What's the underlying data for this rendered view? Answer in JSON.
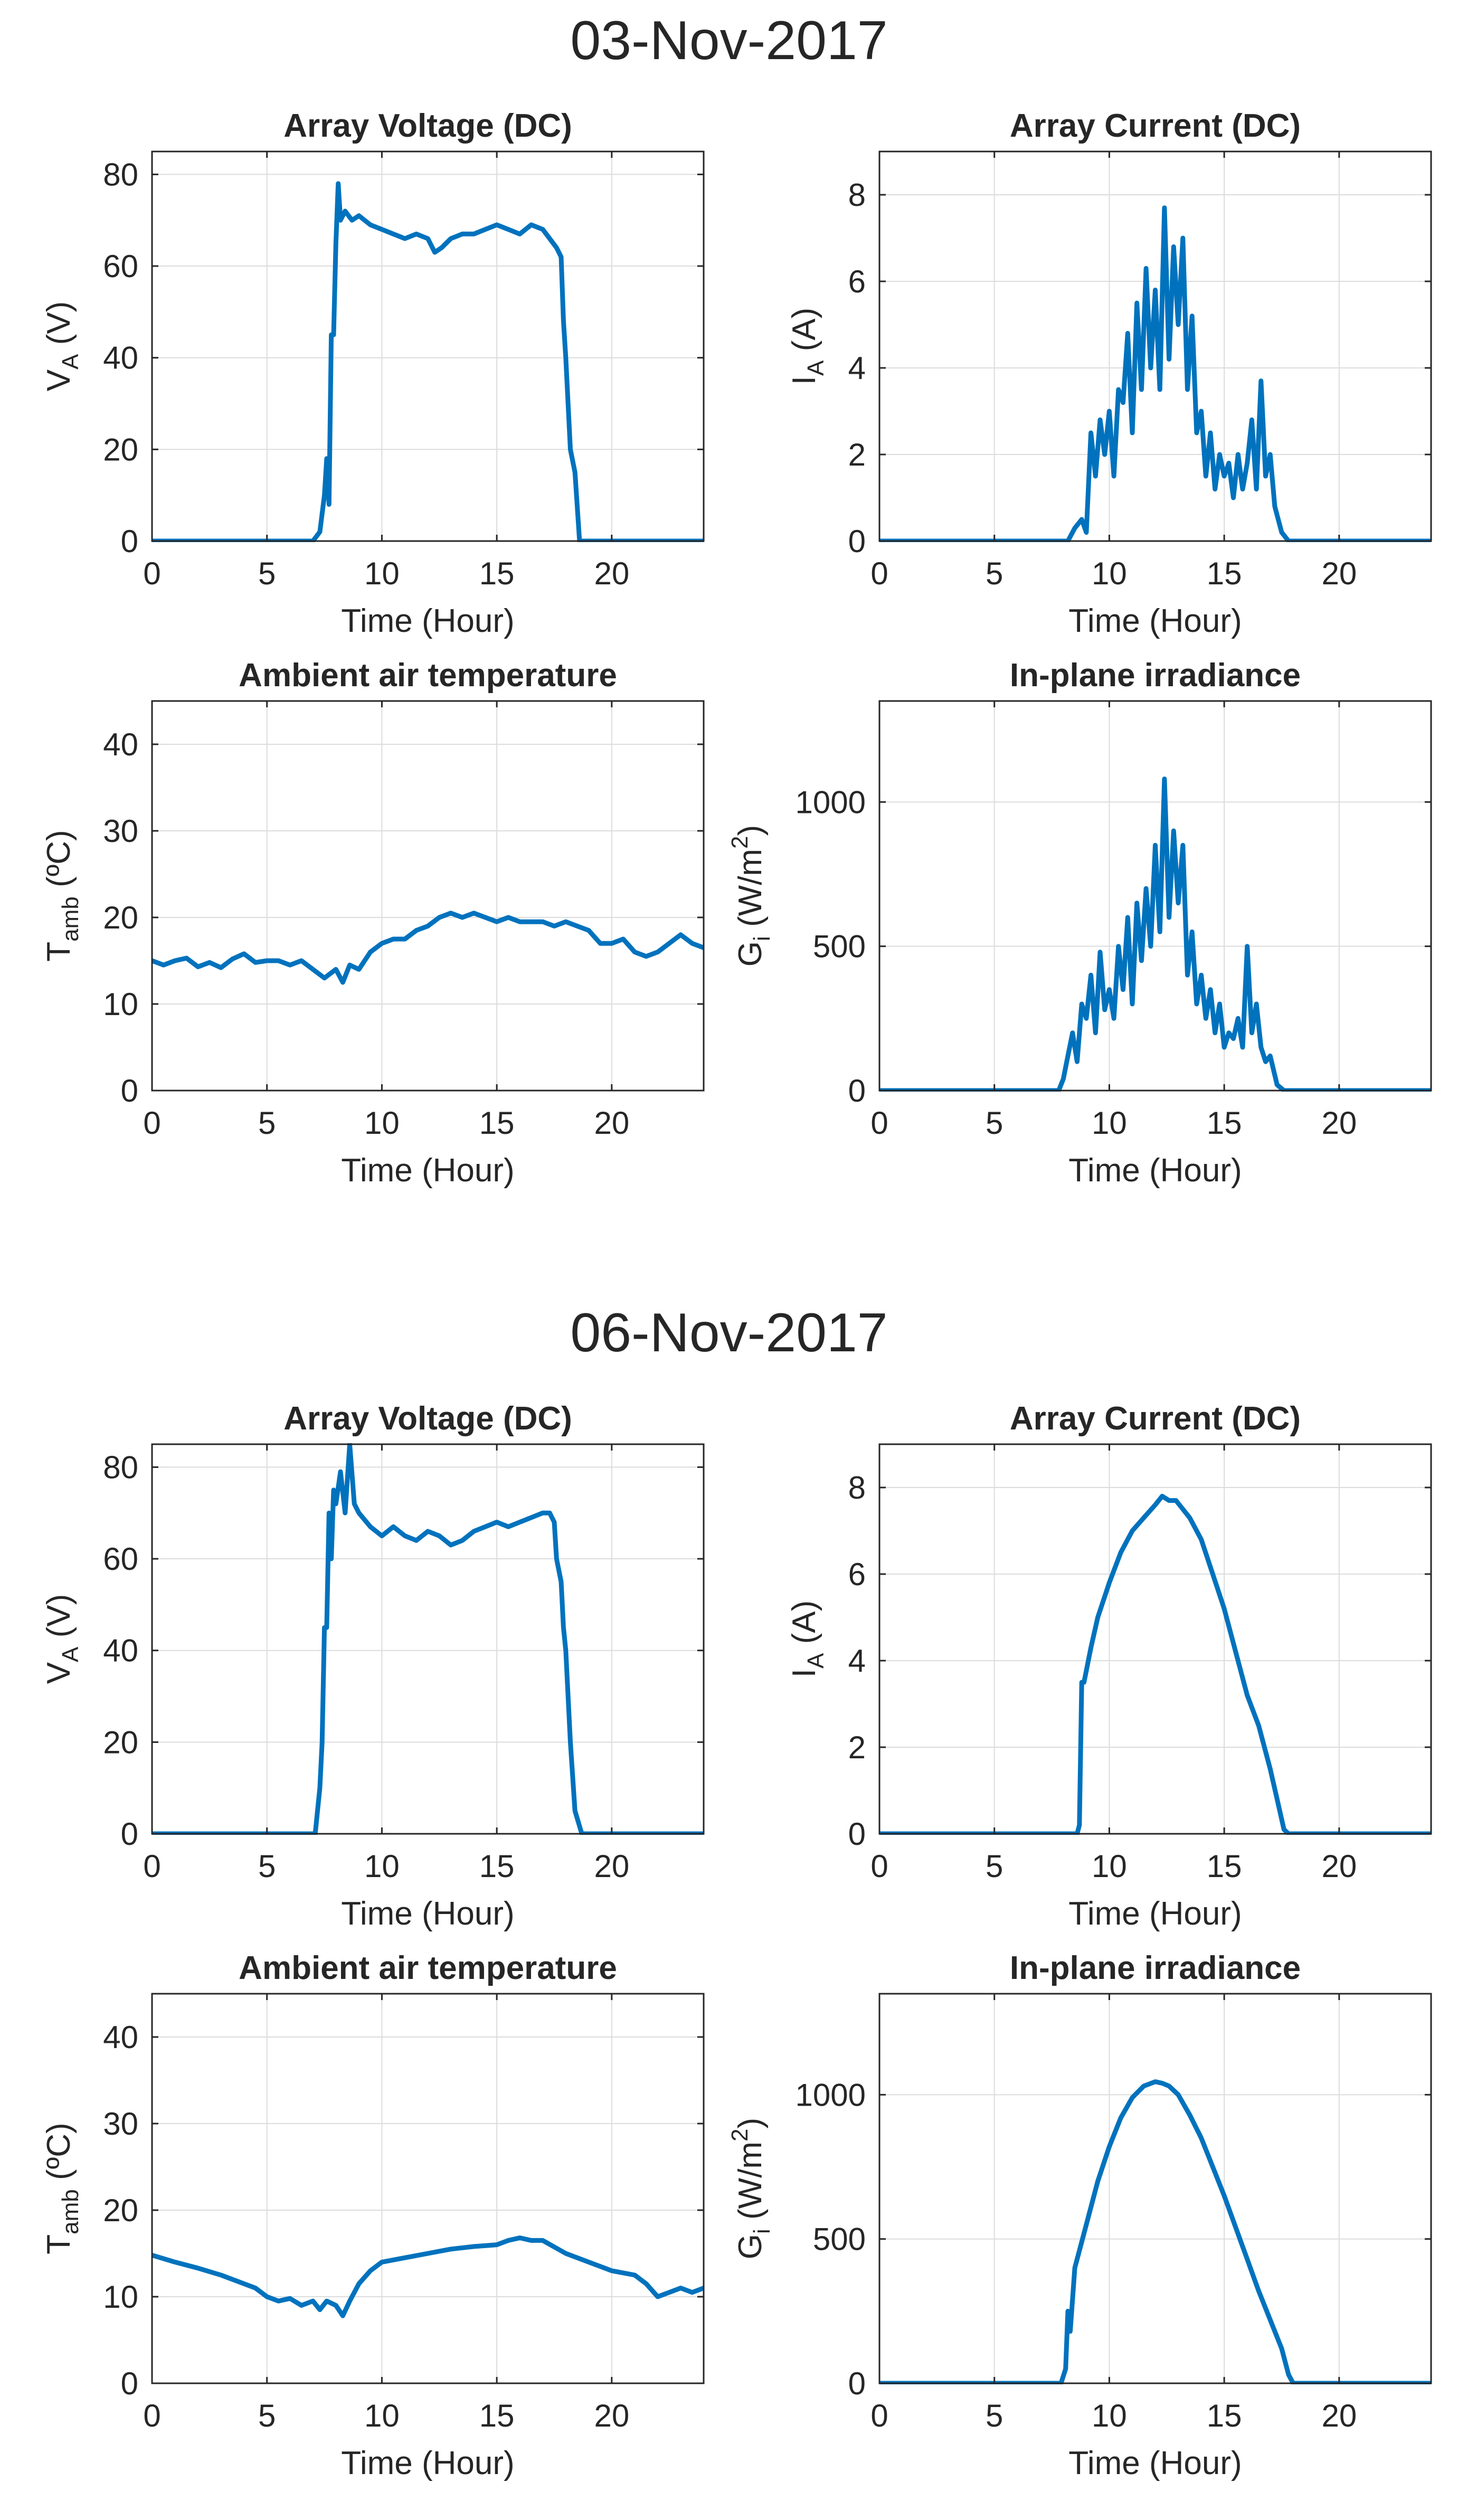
{
  "figure": {
    "sections": [
      {
        "date_title": "03-Nov-2017"
      },
      {
        "date_title": "06-Nov-2017"
      }
    ]
  },
  "colors": {
    "series": "#0072BD",
    "axis": "#262626",
    "grid": "#dcdcdc"
  },
  "chart_data": [
    {
      "type": "line",
      "section": 0,
      "panel": "voltage",
      "title": "Array Voltage (DC)",
      "xlabel": "Time (Hour)",
      "ylabel": "V_A (V)",
      "ylabel_main": "V",
      "ylabel_sub": "A",
      "ylabel_tail": " (V)",
      "xlim": [
        0,
        24
      ],
      "ylim": [
        0,
        85
      ],
      "xticks": [
        0,
        5,
        10,
        15,
        20
      ],
      "yticks": [
        0,
        20,
        40,
        60,
        80
      ],
      "series": [
        {
          "name": "Array Voltage",
          "x": [
            0,
            7,
            7.3,
            7.5,
            7.6,
            7.7,
            7.8,
            7.9,
            8.0,
            8.1,
            8.2,
            8.4,
            8.7,
            9,
            9.5,
            10,
            10.5,
            11,
            11.5,
            12,
            12.3,
            12.6,
            13,
            13.5,
            14,
            14.5,
            15,
            15.5,
            16,
            16.5,
            17,
            17.3,
            17.6,
            17.8,
            17.9,
            18.0,
            18.2,
            18.4,
            18.6,
            19,
            24
          ],
          "y": [
            0,
            0,
            2,
            10,
            18,
            8,
            45,
            45,
            65,
            78,
            70,
            72,
            70,
            71,
            69,
            68,
            67,
            66,
            67,
            66,
            63,
            64,
            66,
            67,
            67,
            68,
            69,
            68,
            67,
            69,
            68,
            66,
            64,
            62,
            48,
            40,
            20,
            15,
            0,
            0,
            0
          ]
        }
      ]
    },
    {
      "type": "line",
      "section": 0,
      "panel": "current",
      "title": "Array Current (DC)",
      "xlabel": "Time (Hour)",
      "ylabel": "I_A (A)",
      "ylabel_main": "I",
      "ylabel_sub": "A",
      "ylabel_tail": " (A)",
      "xlim": [
        0,
        24
      ],
      "ylim": [
        0,
        9
      ],
      "xticks": [
        0,
        5,
        10,
        15,
        20
      ],
      "yticks": [
        0,
        2,
        4,
        6,
        8
      ],
      "series": [
        {
          "name": "Array Current",
          "x": [
            0,
            8.2,
            8.5,
            8.8,
            9.0,
            9.2,
            9.4,
            9.6,
            9.8,
            10,
            10.2,
            10.4,
            10.6,
            10.8,
            11,
            11.2,
            11.4,
            11.6,
            11.8,
            12,
            12.2,
            12.4,
            12.6,
            12.8,
            13,
            13.2,
            13.4,
            13.6,
            13.8,
            14,
            14.2,
            14.4,
            14.6,
            14.8,
            15,
            15.2,
            15.4,
            15.6,
            15.8,
            16,
            16.2,
            16.4,
            16.6,
            16.8,
            17,
            17.2,
            17.5,
            17.8,
            18,
            24
          ],
          "y": [
            0,
            0,
            0.3,
            0.5,
            0.2,
            2.5,
            1.5,
            2.8,
            2,
            3,
            1.5,
            3.5,
            3.2,
            4.8,
            2.5,
            5.5,
            3.5,
            6.3,
            4,
            5.8,
            3.5,
            7.7,
            4.2,
            6.8,
            5,
            7,
            3.5,
            5.2,
            2.5,
            3,
            1.5,
            2.5,
            1.2,
            2,
            1.5,
            1.8,
            1,
            2,
            1.2,
            1.8,
            2.8,
            1.2,
            3.7,
            1.5,
            2,
            0.8,
            0.2,
            0,
            0,
            0
          ]
        }
      ]
    },
    {
      "type": "line",
      "section": 0,
      "panel": "temperature",
      "title": "Ambient air temperature",
      "xlabel": "Time (Hour)",
      "ylabel": "T_amb (ºC)",
      "ylabel_main": "T",
      "ylabel_sub": "amb",
      "ylabel_tail": " (ºC)",
      "xlim": [
        0,
        24
      ],
      "ylim": [
        0,
        45
      ],
      "xticks": [
        0,
        5,
        10,
        15,
        20
      ],
      "yticks": [
        0,
        10,
        20,
        30,
        40
      ],
      "series": [
        {
          "name": "Ambient air temperature",
          "x": [
            0,
            0.5,
            1,
            1.5,
            2,
            2.5,
            3,
            3.5,
            4,
            4.5,
            5,
            5.5,
            6,
            6.5,
            7,
            7.5,
            8,
            8.3,
            8.6,
            9,
            9.5,
            10,
            10.5,
            11,
            11.5,
            12,
            12.5,
            13,
            13.5,
            14,
            14.5,
            15,
            15.5,
            16,
            16.5,
            17,
            17.5,
            18,
            18.5,
            19,
            19.5,
            20,
            20.5,
            21,
            21.5,
            22,
            22.5,
            23,
            23.5,
            24
          ],
          "y": [
            15,
            14.5,
            15,
            15.3,
            14.3,
            14.8,
            14.2,
            15.2,
            15.8,
            14.8,
            15,
            15,
            14.5,
            15,
            14,
            13,
            14,
            12.5,
            14.5,
            14,
            16,
            17,
            17.5,
            17.5,
            18.5,
            19,
            20,
            20.5,
            20,
            20.5,
            20,
            19.5,
            20,
            19.5,
            19.5,
            19.5,
            19,
            19.5,
            19,
            18.5,
            17,
            17,
            17.5,
            16,
            15.5,
            16,
            17,
            18,
            17,
            16.5
          ]
        }
      ]
    },
    {
      "type": "line",
      "section": 0,
      "panel": "irradiance",
      "title": "In-plane irradiance",
      "xlabel": "Time (Hour)",
      "ylabel": "G_i (W/m^2)",
      "ylabel_main": "G",
      "ylabel_sub": "i",
      "ylabel_mid": " (W/m",
      "ylabel_sup": "2",
      "ylabel_tail": ")",
      "xlim": [
        0,
        24
      ],
      "ylim": [
        0,
        1350
      ],
      "xticks": [
        0,
        5,
        10,
        15,
        20
      ],
      "yticks": [
        0,
        500,
        1000
      ],
      "series": [
        {
          "name": "In-plane irradiance",
          "x": [
            0,
            7.8,
            8.0,
            8.2,
            8.4,
            8.6,
            8.8,
            9.0,
            9.2,
            9.4,
            9.6,
            9.8,
            10,
            10.2,
            10.4,
            10.6,
            10.8,
            11,
            11.2,
            11.4,
            11.6,
            11.8,
            12,
            12.2,
            12.4,
            12.6,
            12.8,
            13,
            13.2,
            13.4,
            13.6,
            13.8,
            14,
            14.2,
            14.4,
            14.6,
            14.8,
            15,
            15.2,
            15.4,
            15.6,
            15.8,
            16,
            16.2,
            16.4,
            16.6,
            16.8,
            17,
            17.3,
            17.6,
            18,
            24
          ],
          "y": [
            0,
            0,
            40,
            120,
            200,
            100,
            300,
            250,
            400,
            200,
            480,
            280,
            350,
            250,
            500,
            350,
            600,
            300,
            650,
            450,
            700,
            500,
            850,
            550,
            1080,
            600,
            900,
            650,
            850,
            400,
            550,
            300,
            400,
            250,
            350,
            200,
            300,
            150,
            200,
            180,
            250,
            150,
            500,
            200,
            300,
            150,
            100,
            120,
            20,
            0,
            0,
            0
          ]
        }
      ]
    },
    {
      "type": "line",
      "section": 1,
      "panel": "voltage",
      "title": "Array Voltage (DC)",
      "xlabel": "Time (Hour)",
      "ylabel": "V_A (V)",
      "ylabel_main": "V",
      "ylabel_sub": "A",
      "ylabel_tail": " (V)",
      "xlim": [
        0,
        24
      ],
      "ylim": [
        0,
        85
      ],
      "xticks": [
        0,
        5,
        10,
        15,
        20
      ],
      "yticks": [
        0,
        20,
        40,
        60,
        80
      ],
      "series": [
        {
          "name": "Array Voltage",
          "x": [
            0,
            6.9,
            7.1,
            7.3,
            7.4,
            7.5,
            7.6,
            7.7,
            7.8,
            7.9,
            8.0,
            8.2,
            8.4,
            8.6,
            8.8,
            9,
            9.5,
            10,
            10.5,
            11,
            11.5,
            12,
            12.5,
            13,
            13.5,
            14,
            14.5,
            15,
            15.5,
            16,
            16.5,
            17,
            17.3,
            17.5,
            17.6,
            17.8,
            17.9,
            18.0,
            18.2,
            18.4,
            18.7,
            24
          ],
          "y": [
            0,
            0,
            0,
            10,
            20,
            45,
            45,
            70,
            60,
            75,
            72,
            79,
            70,
            85,
            72,
            70,
            67,
            65,
            67,
            65,
            64,
            66,
            65,
            63,
            64,
            66,
            67,
            68,
            67,
            68,
            69,
            70,
            70,
            68,
            60,
            55,
            45,
            40,
            20,
            5,
            0,
            0
          ]
        }
      ]
    },
    {
      "type": "line",
      "section": 1,
      "panel": "current",
      "title": "Array Current (DC)",
      "xlabel": "Time (Hour)",
      "ylabel": "I_A (A)",
      "ylabel_main": "I",
      "ylabel_sub": "A",
      "ylabel_tail": " (A)",
      "xlim": [
        0,
        24
      ],
      "ylim": [
        0,
        9
      ],
      "xticks": [
        0,
        5,
        10,
        15,
        20
      ],
      "yticks": [
        0,
        2,
        4,
        6,
        8
      ],
      "series": [
        {
          "name": "Array Current",
          "x": [
            0,
            8.6,
            8.7,
            8.8,
            8.9,
            9.2,
            9.5,
            10,
            10.5,
            11,
            11.5,
            12,
            12.3,
            12.6,
            12.9,
            13.2,
            13.5,
            14,
            14.5,
            15,
            15.5,
            16,
            16.5,
            17,
            17.3,
            17.6,
            17.8,
            24
          ],
          "y": [
            0,
            0,
            0.2,
            3.5,
            3.5,
            4.3,
            5,
            5.8,
            6.5,
            7,
            7.3,
            7.6,
            7.8,
            7.7,
            7.7,
            7.5,
            7.3,
            6.8,
            6,
            5.2,
            4.2,
            3.2,
            2.5,
            1.5,
            0.8,
            0.1,
            0,
            0
          ]
        }
      ]
    },
    {
      "type": "line",
      "section": 1,
      "panel": "temperature",
      "title": "Ambient air temperature",
      "xlabel": "Time (Hour)",
      "ylabel": "T_amb (ºC)",
      "ylabel_main": "T",
      "ylabel_sub": "amb",
      "ylabel_tail": " (ºC)",
      "xlim": [
        0,
        24
      ],
      "ylim": [
        0,
        45
      ],
      "xticks": [
        0,
        5,
        10,
        15,
        20
      ],
      "yticks": [
        0,
        10,
        20,
        30,
        40
      ],
      "series": [
        {
          "name": "Ambient air temperature",
          "x": [
            0,
            1,
            2,
            3,
            4,
            4.5,
            5,
            5.5,
            6,
            6.5,
            7,
            7.3,
            7.6,
            8,
            8.3,
            8.6,
            9,
            9.5,
            10,
            11,
            12,
            13,
            14,
            15,
            15.5,
            16,
            16.5,
            17,
            18,
            19,
            20,
            21,
            21.5,
            22,
            22.5,
            23,
            23.5,
            24
          ],
          "y": [
            14.8,
            14,
            13.3,
            12.5,
            11.5,
            11,
            10,
            9.5,
            9.8,
            9,
            9.5,
            8.5,
            9.5,
            9,
            7.8,
            9.5,
            11.5,
            13,
            14,
            14.5,
            15,
            15.5,
            15.8,
            16,
            16.5,
            16.8,
            16.5,
            16.5,
            15,
            14,
            13,
            12.5,
            11.5,
            10,
            10.5,
            11,
            10.5,
            11
          ]
        }
      ]
    },
    {
      "type": "line",
      "section": 1,
      "panel": "irradiance",
      "title": "In-plane irradiance",
      "xlabel": "Time (Hour)",
      "ylabel": "G_i (W/m^2)",
      "ylabel_main": "G",
      "ylabel_sub": "i",
      "ylabel_mid": " (W/m",
      "ylabel_sup": "2",
      "ylabel_tail": ")",
      "xlim": [
        0,
        24
      ],
      "ylim": [
        0,
        1350
      ],
      "xticks": [
        0,
        5,
        10,
        15,
        20
      ],
      "yticks": [
        0,
        500,
        1000
      ],
      "series": [
        {
          "name": "In-plane irradiance",
          "x": [
            0,
            7.9,
            8.1,
            8.2,
            8.3,
            8.5,
            9,
            9.5,
            10,
            10.5,
            11,
            11.5,
            12,
            12.3,
            12.6,
            13,
            13.5,
            14,
            14.5,
            15,
            15.5,
            16,
            16.5,
            17,
            17.5,
            17.8,
            18,
            24
          ],
          "y": [
            0,
            0,
            50,
            250,
            180,
            400,
            550,
            700,
            820,
            920,
            990,
            1030,
            1045,
            1040,
            1030,
            1000,
            930,
            850,
            750,
            650,
            540,
            430,
            320,
            220,
            120,
            30,
            0,
            0
          ]
        }
      ]
    }
  ]
}
